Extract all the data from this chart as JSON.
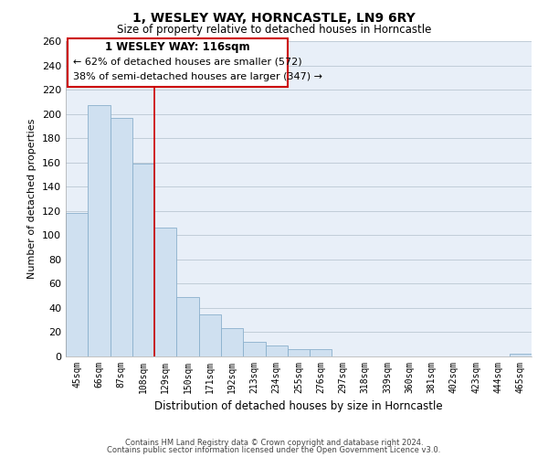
{
  "title": "1, WESLEY WAY, HORNCASTLE, LN9 6RY",
  "subtitle": "Size of property relative to detached houses in Horncastle",
  "xlabel": "Distribution of detached houses by size in Horncastle",
  "ylabel": "Number of detached properties",
  "categories": [
    "45sqm",
    "66sqm",
    "87sqm",
    "108sqm",
    "129sqm",
    "150sqm",
    "171sqm",
    "192sqm",
    "213sqm",
    "234sqm",
    "255sqm",
    "276sqm",
    "297sqm",
    "318sqm",
    "339sqm",
    "360sqm",
    "381sqm",
    "402sqm",
    "423sqm",
    "444sqm",
    "465sqm"
  ],
  "values": [
    118,
    207,
    197,
    159,
    106,
    49,
    35,
    23,
    12,
    9,
    6,
    6,
    0,
    0,
    0,
    0,
    0,
    0,
    0,
    0,
    2
  ],
  "bar_color": "#cfe0f0",
  "bar_edge_color": "#8ab0cc",
  "vline_x": 3.5,
  "vline_color": "#cc0000",
  "annotation_title": "1 WESLEY WAY: 116sqm",
  "annotation_line1": "← 62% of detached houses are smaller (572)",
  "annotation_line2": "38% of semi-detached houses are larger (347) →",
  "box_color": "#ffffff",
  "box_edge_color": "#cc0000",
  "ylim": [
    0,
    260
  ],
  "yticks": [
    0,
    20,
    40,
    60,
    80,
    100,
    120,
    140,
    160,
    180,
    200,
    220,
    240,
    260
  ],
  "footnote1": "Contains HM Land Registry data © Crown copyright and database right 2024.",
  "footnote2": "Contains public sector information licensed under the Open Government Licence v3.0.",
  "bg_color": "#ffffff",
  "plot_bg_color": "#e8eff8",
  "grid_color": "#c0ccd8"
}
